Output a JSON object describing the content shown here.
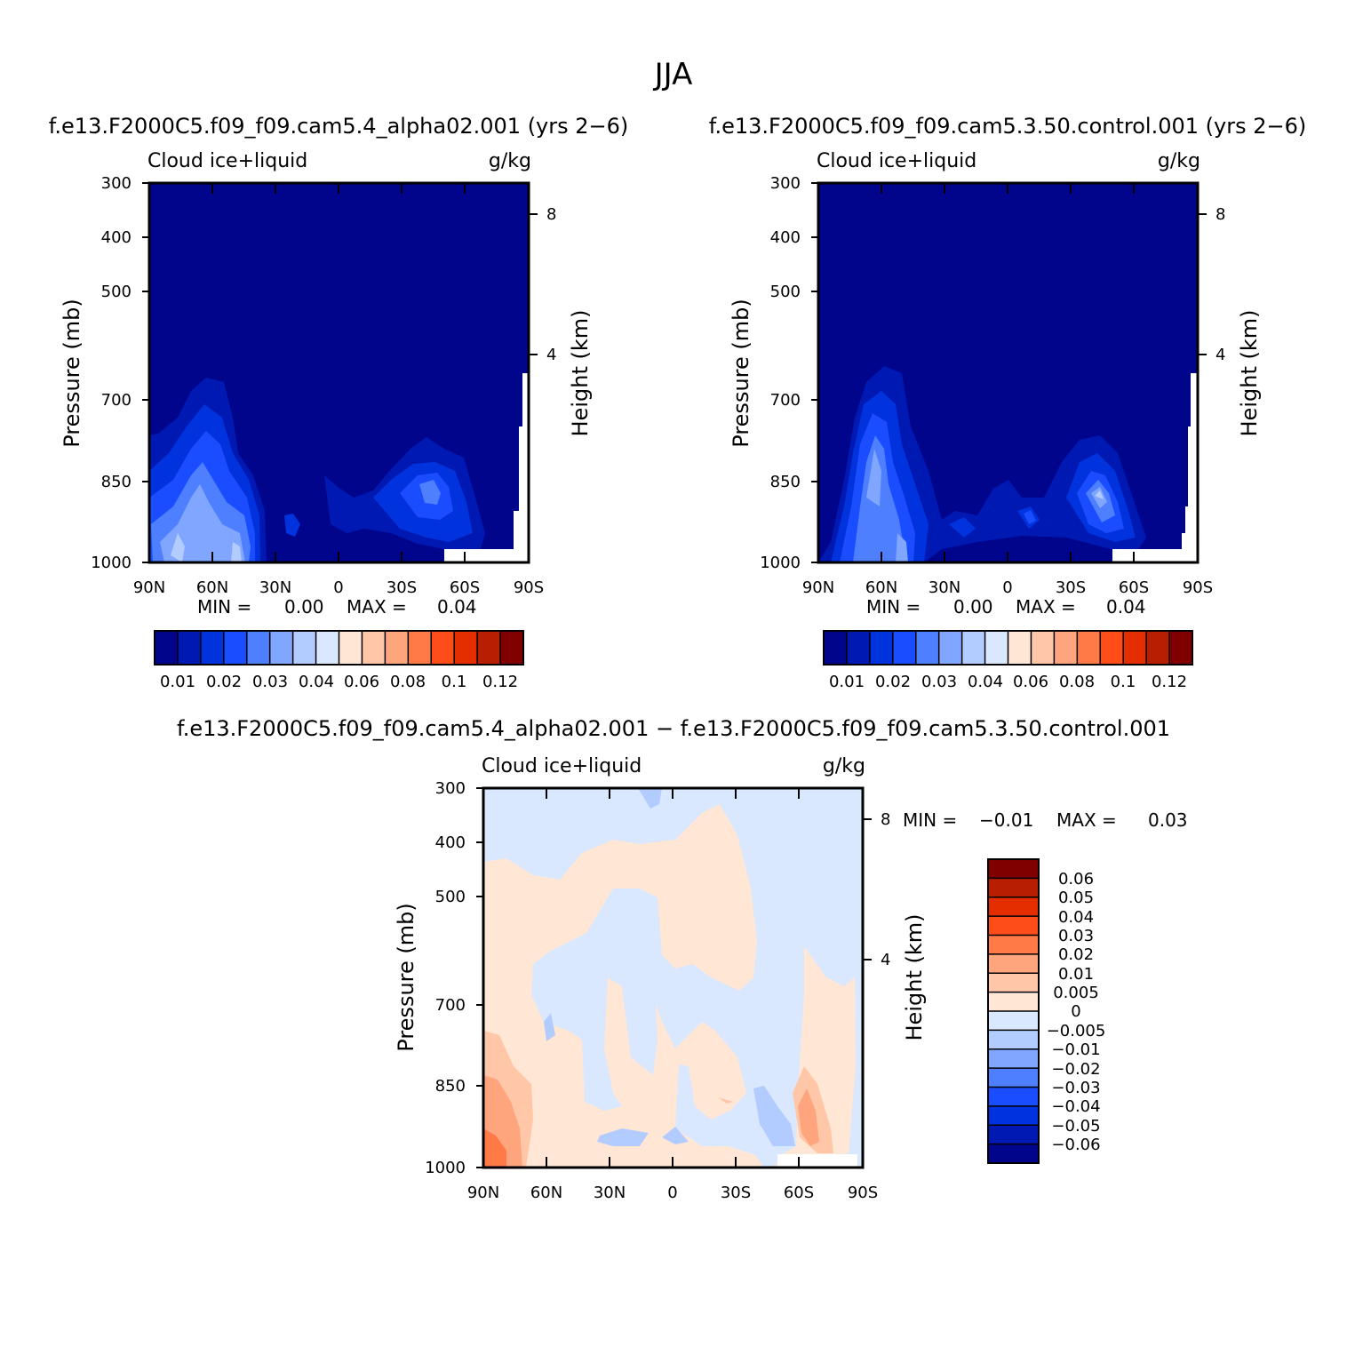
{
  "figure_title": "JJA",
  "chart_data": [
    {
      "type": "heatmap",
      "panel": "top-left",
      "title": "f.e13.F2000C5.f09_f09.cam5.4_alpha02.001  (yrs  2-6)",
      "variable": "Cloud  ice+liquid",
      "units": "g/kg",
      "xlabel": "",
      "ylabel": "Pressure  (mb)",
      "ylabel_right": "Height  (km)",
      "x_ticks": [
        "90N",
        "60N",
        "30N",
        "0",
        "30S",
        "60S",
        "90S"
      ],
      "y_ticks": [
        "300",
        "400",
        "500",
        "700",
        "850",
        "1000"
      ],
      "y_ticks_right": [
        "8",
        "4"
      ],
      "min_label": "MIN  =",
      "min_value": "0.00",
      "max_label": "MAX  =",
      "max_value": "0.04",
      "colorbar": {
        "orientation": "horizontal",
        "labels": [
          "0.01",
          "0.02",
          "0.03",
          "0.04",
          "0.06",
          "0.08",
          "0.1",
          "0.12"
        ],
        "colors": [
          "#00058c",
          "#0019b3",
          "#0033dd",
          "#1a4dff",
          "#4d7fff",
          "#80a6ff",
          "#b3ccff",
          "#d9e8ff",
          "#ffe6d5",
          "#ffc6a8",
          "#ffa57e",
          "#ff7a47",
          "#ff4d1a",
          "#e52e00",
          "#b81e00",
          "#800000"
        ]
      }
    },
    {
      "type": "heatmap",
      "panel": "top-right",
      "title": "f.e13.F2000C5.f09_f09.cam5.3.50.control.001  (yrs  2-6)",
      "variable": "Cloud  ice+liquid",
      "units": "g/kg",
      "xlabel": "",
      "ylabel": "Pressure  (mb)",
      "ylabel_right": "Height  (km)",
      "x_ticks": [
        "90N",
        "60N",
        "30N",
        "0",
        "30S",
        "60S",
        "90S"
      ],
      "y_ticks": [
        "300",
        "400",
        "500",
        "700",
        "850",
        "1000"
      ],
      "y_ticks_right": [
        "8",
        "4"
      ],
      "min_label": "MIN  =",
      "min_value": "0.00",
      "max_label": "MAX  =",
      "max_value": "0.04",
      "colorbar": {
        "orientation": "horizontal",
        "labels": [
          "0.01",
          "0.02",
          "0.03",
          "0.04",
          "0.06",
          "0.08",
          "0.1",
          "0.12"
        ],
        "colors": [
          "#00058c",
          "#0019b3",
          "#0033dd",
          "#1a4dff",
          "#4d7fff",
          "#80a6ff",
          "#b3ccff",
          "#d9e8ff",
          "#ffe6d5",
          "#ffc6a8",
          "#ffa57e",
          "#ff7a47",
          "#ff4d1a",
          "#e52e00",
          "#b81e00",
          "#800000"
        ]
      }
    },
    {
      "type": "heatmap",
      "panel": "bottom",
      "title": "f.e13.F2000C5.f09_f09.cam5.4_alpha02.001  -  f.e13.F2000C5.f09_f09.cam5.3.50.control.001",
      "variable": "Cloud  ice+liquid",
      "units": "g/kg",
      "xlabel": "",
      "ylabel": "Pressure  (mb)",
      "ylabel_right": "Height  (km)",
      "x_ticks": [
        "90N",
        "60N",
        "30N",
        "0",
        "30S",
        "60S",
        "90S"
      ],
      "y_ticks": [
        "300",
        "400",
        "500",
        "700",
        "850",
        "1000"
      ],
      "y_ticks_right": [
        "8",
        "4"
      ],
      "min_label": "MIN  =",
      "min_value": "-0.01",
      "max_label": "MAX  =",
      "max_value": "0.03",
      "colorbar": {
        "orientation": "vertical",
        "labels": [
          "0.06",
          "0.05",
          "0.04",
          "0.03",
          "0.02",
          "0.01",
          "0.005",
          "0",
          "-0.005",
          "-0.01",
          "-0.02",
          "-0.03",
          "-0.04",
          "-0.05",
          "-0.06"
        ],
        "colors": [
          "#800000",
          "#b81e00",
          "#e52e00",
          "#ff4d1a",
          "#ff7a47",
          "#ffa57e",
          "#ffc6a8",
          "#ffe6d5",
          "#d9e8ff",
          "#b3ccff",
          "#80a6ff",
          "#4d7fff",
          "#1a4dff",
          "#0033dd",
          "#0019b3",
          "#00058c"
        ]
      }
    }
  ]
}
